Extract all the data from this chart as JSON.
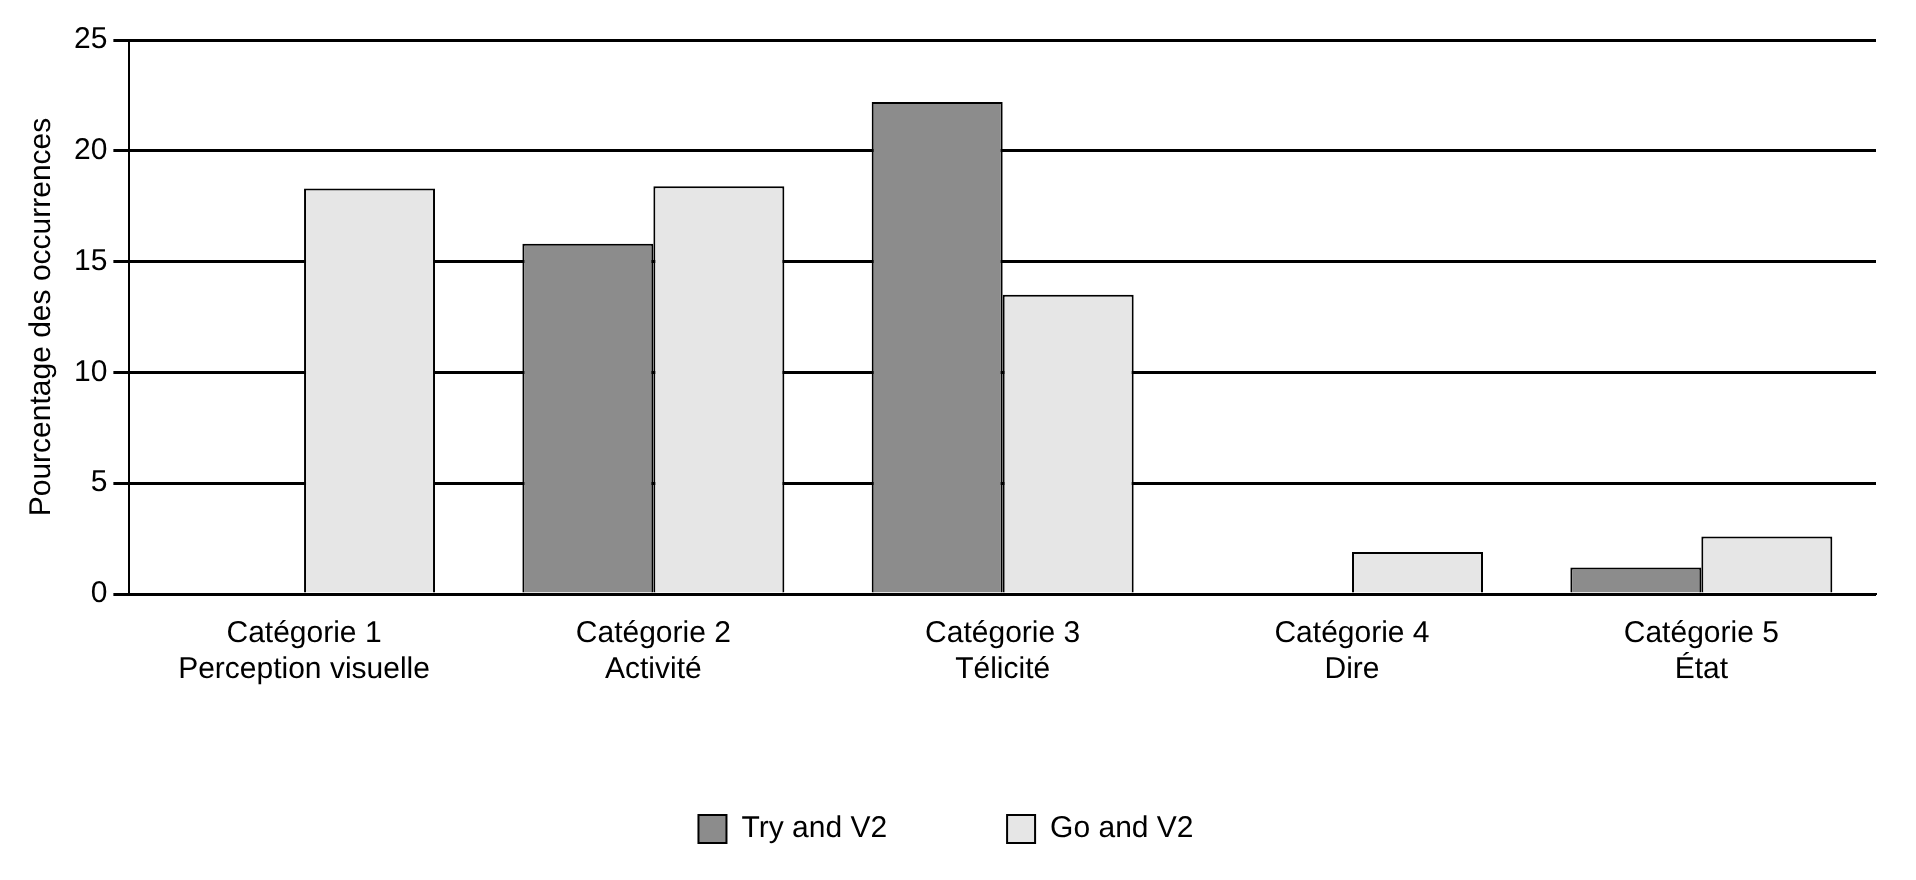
{
  "chart_data": {
    "type": "bar",
    "ylabel": "Pourcentage des occurrences",
    "categories": [
      "Catégorie 1\nPerception visuelle",
      "Catégorie 2\nActivité",
      "Catégorie 3\nTélicité",
      "Catégorie 4\nDire",
      "Catégorie 5\nÉtat"
    ],
    "series": [
      {
        "name": "Try and V2",
        "color": "#8c8c8c",
        "values": [
          0,
          15.8,
          22.2,
          0,
          1.2
        ]
      },
      {
        "name": "Go and V2",
        "color": "#e6e6e6",
        "values": [
          18.3,
          18.4,
          13.5,
          1.9,
          2.6
        ]
      }
    ],
    "ylim": [
      0,
      25
    ],
    "yticks": [
      0,
      5,
      10,
      15,
      20,
      25
    ],
    "grid": "y",
    "legend": "bottom"
  }
}
